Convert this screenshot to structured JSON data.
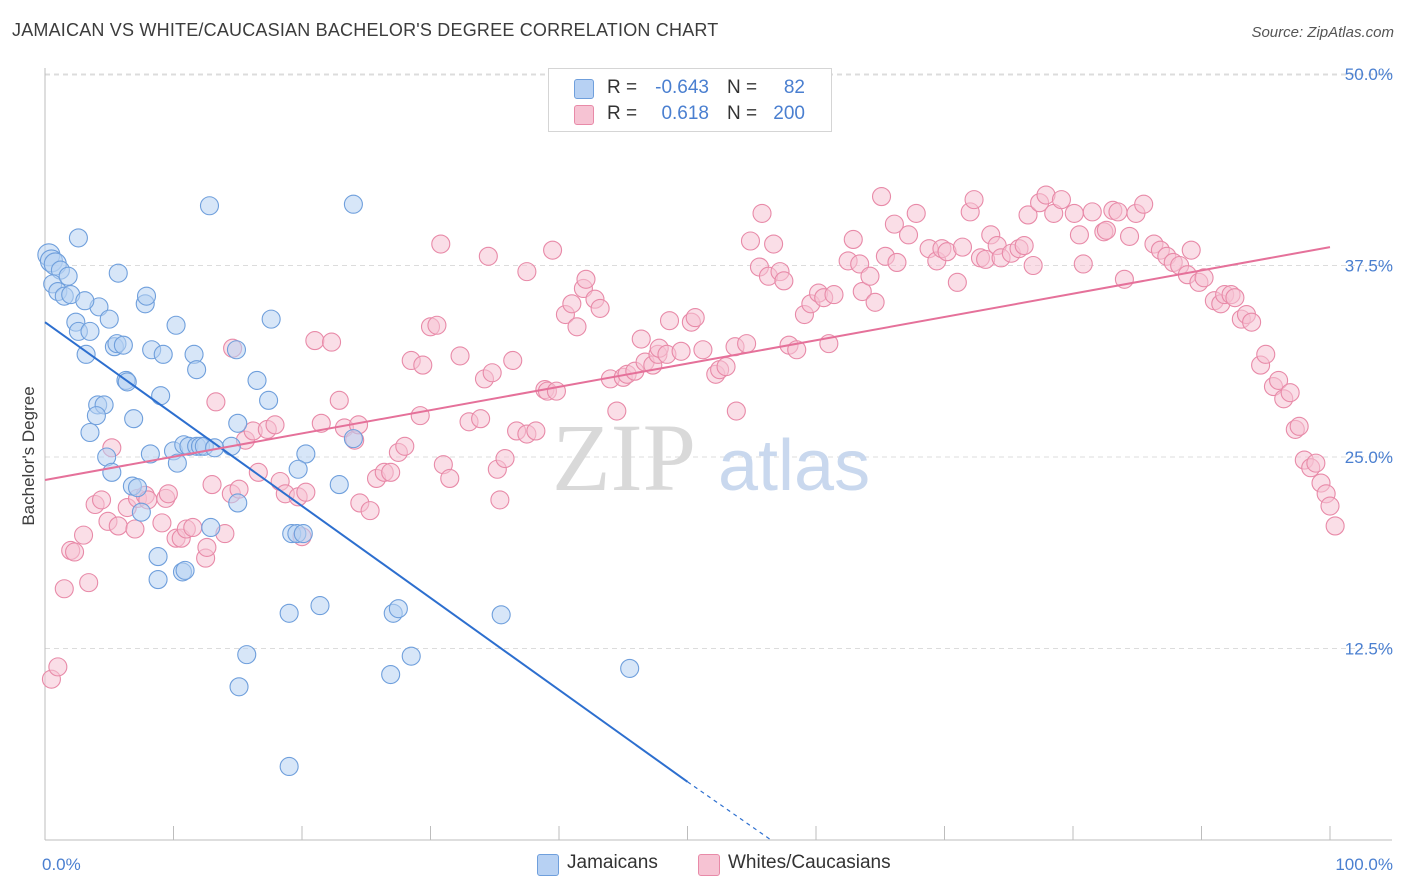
{
  "title": "JAMAICAN VS WHITE/CAUCASIAN BACHELOR'S DEGREE CORRELATION CHART",
  "source": "Source: ZipAtlas.com",
  "watermark": {
    "zip": "ZIP",
    "atlas": "atlas"
  },
  "colors": {
    "blue_fill": "#b7d1f3",
    "blue_stroke": "#6f9fdc",
    "blue_line": "#2d6fcf",
    "pink_fill": "#f6c3d3",
    "pink_stroke": "#e88aa8",
    "pink_line": "#e5719a",
    "tick_text": "#4a7fd0",
    "grid": "#dcdcdc"
  },
  "legend": {
    "rows": [
      {
        "r_label": "R =",
        "r_value": "-0.643",
        "n_label": "N =",
        "n_value": "82"
      },
      {
        "r_label": "R =",
        "r_value": "0.618",
        "n_label": "N =",
        "n_value": "200"
      }
    ]
  },
  "bottom_legend": {
    "jamaicans": "Jamaicans",
    "whites": "Whites/Caucasians"
  },
  "chart_data": {
    "type": "scatter",
    "ylabel": "Bachelor's Degree",
    "xlim": [
      0,
      100
    ],
    "ylim": [
      0,
      52
    ],
    "x_tick_labels": {
      "left": "0.0%",
      "right": "100.0%"
    },
    "y_ticks": [
      {
        "value": 12.5,
        "label": "12.5%"
      },
      {
        "value": 25.0,
        "label": "25.0%"
      },
      {
        "value": 37.5,
        "label": "37.5%"
      },
      {
        "value": 50.0,
        "label": "50.0%"
      }
    ],
    "grid": "horizontal dashed",
    "series": [
      {
        "name": "Jamaicans",
        "r": -0.643,
        "n": 82,
        "trend": {
          "x0": 0,
          "y0": 33.8,
          "x1": 50,
          "y1": 3.8,
          "dashed_to_x": 56.5,
          "dashed_to_y": 0
        },
        "points": [
          [
            0.3,
            38.2
          ],
          [
            0.5,
            37.8
          ],
          [
            0.8,
            37.6
          ],
          [
            1.2,
            37.2
          ],
          [
            0.6,
            36.3
          ],
          [
            1.0,
            35.8
          ],
          [
            1.5,
            35.5
          ],
          [
            2.0,
            35.6
          ],
          [
            2.6,
            39.3
          ],
          [
            2.4,
            33.8
          ],
          [
            2.6,
            33.2
          ],
          [
            3.5,
            33.2
          ],
          [
            4.2,
            34.8
          ],
          [
            5.0,
            34.0
          ],
          [
            5.7,
            37.0
          ],
          [
            7.8,
            35.0
          ],
          [
            7.9,
            35.5
          ],
          [
            3.2,
            31.7
          ],
          [
            5.4,
            32.2
          ],
          [
            5.6,
            32.4
          ],
          [
            8.3,
            32.0
          ],
          [
            9.2,
            31.7
          ],
          [
            10.2,
            33.6
          ],
          [
            11.6,
            31.7
          ],
          [
            11.8,
            30.7
          ],
          [
            14.9,
            32.0
          ],
          [
            17.6,
            34.0
          ],
          [
            4.1,
            28.4
          ],
          [
            4.6,
            28.4
          ],
          [
            4.0,
            27.7
          ],
          [
            6.3,
            30.0
          ],
          [
            6.4,
            29.9
          ],
          [
            6.9,
            27.5
          ],
          [
            9.0,
            29.0
          ],
          [
            3.5,
            26.6
          ],
          [
            4.8,
            25.0
          ],
          [
            8.2,
            25.2
          ],
          [
            10.0,
            25.4
          ],
          [
            10.3,
            24.6
          ],
          [
            10.8,
            25.8
          ],
          [
            11.2,
            25.7
          ],
          [
            11.8,
            25.7
          ],
          [
            12.1,
            25.7
          ],
          [
            12.4,
            25.7
          ],
          [
            14.5,
            25.7
          ],
          [
            15.0,
            27.2
          ],
          [
            17.4,
            28.7
          ],
          [
            16.5,
            30.0
          ],
          [
            20.3,
            25.2
          ],
          [
            19.7,
            24.2
          ],
          [
            24.0,
            26.2
          ],
          [
            22.9,
            23.2
          ],
          [
            5.2,
            24.0
          ],
          [
            6.8,
            23.1
          ],
          [
            7.2,
            23.0
          ],
          [
            7.5,
            21.4
          ],
          [
            15.0,
            22.0
          ],
          [
            12.9,
            20.4
          ],
          [
            19.2,
            20.0
          ],
          [
            19.6,
            20.0
          ],
          [
            20.1,
            20.0
          ],
          [
            8.8,
            18.5
          ],
          [
            8.8,
            17.0
          ],
          [
            10.7,
            17.5
          ],
          [
            10.9,
            17.6
          ],
          [
            12.8,
            41.4
          ],
          [
            24.0,
            41.5
          ],
          [
            19.0,
            14.8
          ],
          [
            21.4,
            15.3
          ],
          [
            27.1,
            14.8
          ],
          [
            27.5,
            15.1
          ],
          [
            35.5,
            14.7
          ],
          [
            15.7,
            12.1
          ],
          [
            28.5,
            12.0
          ],
          [
            15.1,
            10.0
          ],
          [
            26.9,
            10.8
          ],
          [
            45.5,
            11.2
          ],
          [
            19.0,
            4.8
          ],
          [
            1.8,
            36.8
          ],
          [
            3.1,
            35.2
          ],
          [
            6.1,
            32.3
          ],
          [
            13.2,
            25.6
          ]
        ]
      },
      {
        "name": "Whites/Caucasians",
        "r": 0.618,
        "n": 200,
        "trend": {
          "x0": 0,
          "y0": 23.5,
          "x1": 100,
          "y1": 38.7
        },
        "points": [
          [
            0.5,
            10.5
          ],
          [
            1.0,
            11.3
          ],
          [
            1.5,
            16.4
          ],
          [
            2.0,
            18.9
          ],
          [
            2.3,
            18.8
          ],
          [
            3.0,
            19.9
          ],
          [
            3.4,
            16.8
          ],
          [
            3.9,
            21.9
          ],
          [
            4.4,
            22.2
          ],
          [
            4.9,
            20.8
          ],
          [
            5.2,
            25.6
          ],
          [
            5.7,
            20.5
          ],
          [
            6.4,
            21.7
          ],
          [
            7.0,
            20.3
          ],
          [
            7.2,
            22.3
          ],
          [
            7.8,
            22.5
          ],
          [
            8.0,
            22.2
          ],
          [
            9.1,
            20.7
          ],
          [
            9.4,
            22.3
          ],
          [
            9.6,
            22.6
          ],
          [
            10.2,
            19.7
          ],
          [
            10.6,
            19.7
          ],
          [
            11.0,
            20.3
          ],
          [
            11.5,
            20.4
          ],
          [
            12.5,
            18.4
          ],
          [
            12.6,
            19.1
          ],
          [
            13.0,
            23.2
          ],
          [
            14.0,
            20.0
          ],
          [
            14.5,
            22.6
          ],
          [
            15.1,
            22.9
          ],
          [
            15.6,
            26.1
          ],
          [
            16.2,
            26.7
          ],
          [
            13.3,
            28.6
          ],
          [
            14.6,
            32.1
          ],
          [
            16.6,
            24.0
          ],
          [
            17.3,
            26.8
          ],
          [
            17.9,
            27.1
          ],
          [
            18.3,
            23.4
          ],
          [
            18.7,
            22.6
          ],
          [
            19.7,
            22.4
          ],
          [
            20.3,
            22.7
          ],
          [
            20.0,
            19.8
          ],
          [
            21.0,
            32.6
          ],
          [
            21.5,
            27.2
          ],
          [
            22.3,
            32.5
          ],
          [
            22.9,
            28.7
          ],
          [
            23.3,
            26.9
          ],
          [
            24.1,
            26.1
          ],
          [
            24.4,
            27.1
          ],
          [
            24.5,
            22.0
          ],
          [
            25.3,
            21.5
          ],
          [
            25.8,
            23.6
          ],
          [
            26.4,
            24.0
          ],
          [
            26.9,
            24.0
          ],
          [
            27.5,
            25.3
          ],
          [
            28.0,
            25.7
          ],
          [
            28.5,
            31.3
          ],
          [
            29.2,
            27.7
          ],
          [
            29.4,
            31.0
          ],
          [
            30.0,
            33.5
          ],
          [
            30.5,
            33.6
          ],
          [
            31.0,
            24.5
          ],
          [
            31.5,
            23.6
          ],
          [
            32.3,
            31.6
          ],
          [
            33.0,
            27.3
          ],
          [
            33.9,
            27.5
          ],
          [
            34.2,
            30.1
          ],
          [
            34.8,
            30.5
          ],
          [
            35.2,
            24.2
          ],
          [
            35.4,
            22.2
          ],
          [
            35.8,
            24.9
          ],
          [
            36.4,
            31.3
          ],
          [
            36.7,
            26.7
          ],
          [
            37.5,
            26.5
          ],
          [
            38.2,
            26.7
          ],
          [
            38.9,
            29.4
          ],
          [
            39.1,
            29.3
          ],
          [
            39.8,
            29.3
          ],
          [
            40.5,
            34.3
          ],
          [
            41.0,
            35.0
          ],
          [
            41.4,
            33.5
          ],
          [
            41.9,
            36.0
          ],
          [
            42.1,
            36.6
          ],
          [
            42.8,
            35.3
          ],
          [
            43.2,
            34.7
          ],
          [
            34.5,
            38.1
          ],
          [
            30.8,
            38.9
          ],
          [
            37.5,
            37.1
          ],
          [
            39.5,
            38.5
          ],
          [
            44.0,
            30.1
          ],
          [
            44.5,
            28.0
          ],
          [
            45.0,
            30.2
          ],
          [
            45.3,
            30.4
          ],
          [
            45.9,
            30.6
          ],
          [
            46.4,
            32.7
          ],
          [
            46.7,
            31.2
          ],
          [
            47.3,
            31.0
          ],
          [
            47.7,
            31.7
          ],
          [
            47.8,
            32.1
          ],
          [
            48.4,
            31.7
          ],
          [
            48.6,
            33.9
          ],
          [
            49.5,
            31.9
          ],
          [
            50.3,
            33.8
          ],
          [
            50.6,
            34.1
          ],
          [
            51.2,
            32.0
          ],
          [
            52.2,
            30.4
          ],
          [
            52.5,
            30.7
          ],
          [
            53.0,
            30.9
          ],
          [
            53.7,
            32.2
          ],
          [
            53.8,
            28.0
          ],
          [
            54.6,
            32.4
          ],
          [
            54.9,
            39.1
          ],
          [
            55.6,
            37.4
          ],
          [
            55.8,
            40.9
          ],
          [
            56.3,
            36.8
          ],
          [
            56.7,
            38.9
          ],
          [
            57.2,
            37.1
          ],
          [
            57.5,
            36.5
          ],
          [
            57.9,
            32.3
          ],
          [
            58.5,
            32.0
          ],
          [
            59.1,
            34.3
          ],
          [
            59.6,
            35.0
          ],
          [
            60.2,
            35.7
          ],
          [
            60.6,
            35.4
          ],
          [
            61.0,
            32.4
          ],
          [
            61.4,
            35.6
          ],
          [
            62.5,
            37.8
          ],
          [
            62.9,
            39.2
          ],
          [
            63.4,
            37.6
          ],
          [
            63.6,
            35.8
          ],
          [
            64.2,
            36.8
          ],
          [
            64.6,
            35.1
          ],
          [
            65.1,
            42.0
          ],
          [
            65.4,
            38.1
          ],
          [
            66.3,
            37.7
          ],
          [
            67.2,
            39.5
          ],
          [
            67.8,
            40.9
          ],
          [
            66.1,
            40.2
          ],
          [
            68.8,
            38.6
          ],
          [
            69.4,
            37.8
          ],
          [
            69.8,
            38.6
          ],
          [
            70.2,
            38.4
          ],
          [
            71.0,
            36.4
          ],
          [
            71.4,
            38.7
          ],
          [
            72.0,
            41.0
          ],
          [
            72.3,
            41.8
          ],
          [
            72.8,
            38.0
          ],
          [
            73.2,
            37.9
          ],
          [
            73.6,
            39.5
          ],
          [
            74.1,
            38.8
          ],
          [
            74.4,
            38.0
          ],
          [
            75.2,
            38.3
          ],
          [
            75.8,
            38.6
          ],
          [
            76.2,
            38.8
          ],
          [
            76.5,
            40.8
          ],
          [
            76.9,
            37.5
          ],
          [
            77.4,
            41.6
          ],
          [
            77.9,
            42.1
          ],
          [
            78.5,
            40.9
          ],
          [
            79.1,
            41.8
          ],
          [
            80.1,
            40.9
          ],
          [
            80.5,
            39.5
          ],
          [
            80.8,
            37.6
          ],
          [
            81.5,
            41.0
          ],
          [
            82.4,
            39.7
          ],
          [
            82.6,
            39.8
          ],
          [
            83.1,
            41.1
          ],
          [
            83.5,
            41.0
          ],
          [
            84.0,
            36.6
          ],
          [
            84.4,
            39.4
          ],
          [
            84.9,
            40.9
          ],
          [
            85.5,
            41.5
          ],
          [
            86.3,
            38.9
          ],
          [
            86.8,
            38.5
          ],
          [
            87.3,
            38.1
          ],
          [
            87.8,
            37.7
          ],
          [
            88.3,
            37.5
          ],
          [
            88.9,
            36.9
          ],
          [
            89.2,
            38.5
          ],
          [
            89.8,
            36.4
          ],
          [
            90.2,
            36.7
          ],
          [
            91.0,
            35.2
          ],
          [
            91.5,
            35.0
          ],
          [
            91.8,
            35.6
          ],
          [
            92.3,
            35.6
          ],
          [
            92.6,
            35.4
          ],
          [
            93.1,
            34.0
          ],
          [
            93.5,
            34.3
          ],
          [
            93.9,
            33.8
          ],
          [
            94.6,
            31.0
          ],
          [
            95.0,
            31.7
          ],
          [
            95.6,
            29.6
          ],
          [
            96.0,
            30.0
          ],
          [
            96.4,
            28.8
          ],
          [
            96.9,
            29.2
          ],
          [
            97.3,
            26.8
          ],
          [
            97.6,
            27.0
          ],
          [
            98.0,
            24.8
          ],
          [
            98.5,
            24.3
          ],
          [
            98.9,
            24.6
          ],
          [
            99.3,
            23.3
          ],
          [
            99.7,
            22.6
          ],
          [
            100.0,
            21.8
          ],
          [
            100.4,
            20.5
          ]
        ]
      }
    ]
  }
}
